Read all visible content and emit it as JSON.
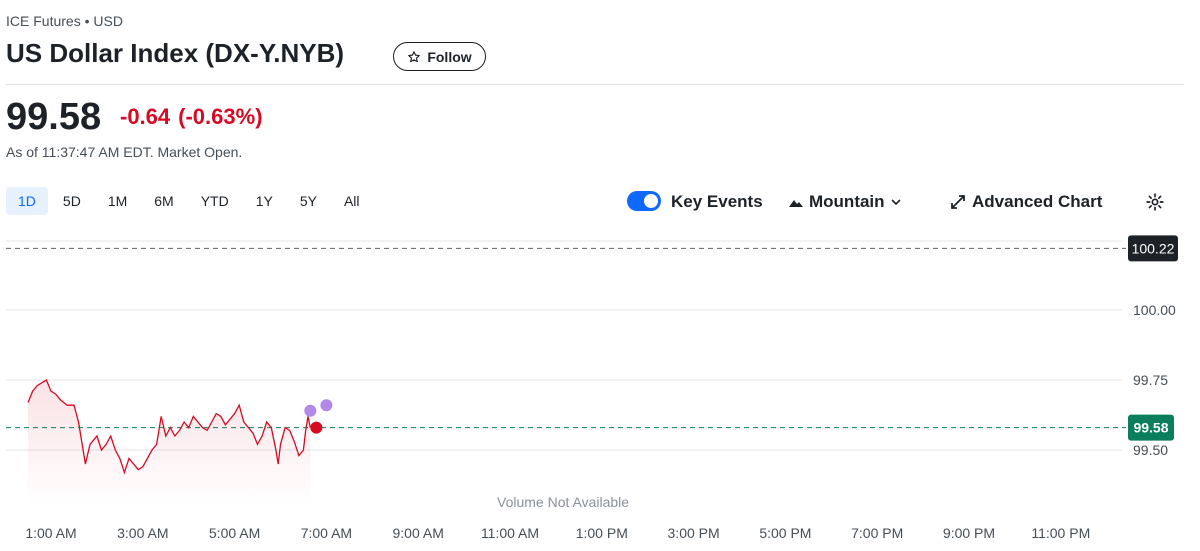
{
  "header": {
    "exchange": "ICE Futures • USD",
    "title": "US Dollar Index (DX-Y.NYB)",
    "follow_label": "Follow"
  },
  "quote": {
    "price": "99.58",
    "change": "-0.64",
    "change_pct": "(-0.63%)",
    "as_of": "As of 11:37:47 AM EDT. Market Open."
  },
  "ranges": [
    {
      "label": "1D",
      "active": true
    },
    {
      "label": "5D"
    },
    {
      "label": "1M"
    },
    {
      "label": "6M"
    },
    {
      "label": "YTD"
    },
    {
      "label": "1Y"
    },
    {
      "label": "5Y"
    },
    {
      "label": "All"
    }
  ],
  "controls": {
    "key_events_label": "Key Events",
    "key_events_on": true,
    "chart_type_label": "Mountain",
    "advanced_chart_label": "Advanced Chart"
  },
  "colors": {
    "down": "#d60a22",
    "accent": "#0f69ff",
    "current_tag": "#0b7e5c",
    "prev_close_tag": "#1d2228",
    "event_marker": "#b388e6"
  },
  "chart_data": {
    "type": "area",
    "ylim": [
      99.4,
      100.24
    ],
    "yticks": [
      "100.00",
      "99.75",
      "99.50"
    ],
    "prev_close": "100.22",
    "current": "99.58",
    "x_labels": [
      "1:00 AM",
      "3:00 AM",
      "5:00 AM",
      "7:00 AM",
      "9:00 AM",
      "11:00 AM",
      "1:00 PM",
      "3:00 PM",
      "5:00 PM",
      "7:00 PM",
      "9:00 PM",
      "11:00 PM"
    ],
    "series": [
      {
        "values": [
          [
            0.5,
            99.67
          ],
          [
            0.6,
            99.71
          ],
          [
            0.7,
            99.73
          ],
          [
            0.8,
            99.74
          ],
          [
            0.9,
            99.75
          ],
          [
            1.0,
            99.71
          ],
          [
            1.1,
            99.7
          ],
          [
            1.2,
            99.68
          ],
          [
            1.35,
            99.66
          ],
          [
            1.5,
            99.66
          ],
          [
            1.6,
            99.6
          ],
          [
            1.65,
            99.55
          ],
          [
            1.7,
            99.5
          ],
          [
            1.75,
            99.45
          ],
          [
            1.85,
            99.52
          ],
          [
            2.0,
            99.55
          ],
          [
            2.1,
            99.5
          ],
          [
            2.2,
            99.52
          ],
          [
            2.3,
            99.55
          ],
          [
            2.4,
            99.5
          ],
          [
            2.5,
            99.47
          ],
          [
            2.6,
            99.42
          ],
          [
            2.7,
            99.47
          ],
          [
            2.8,
            99.45
          ],
          [
            2.9,
            99.43
          ],
          [
            3.0,
            99.44
          ],
          [
            3.1,
            99.47
          ],
          [
            3.2,
            99.5
          ],
          [
            3.3,
            99.52
          ],
          [
            3.4,
            99.62
          ],
          [
            3.5,
            99.55
          ],
          [
            3.6,
            99.58
          ],
          [
            3.7,
            99.55
          ],
          [
            3.8,
            99.57
          ],
          [
            3.9,
            99.6
          ],
          [
            4.0,
            99.58
          ],
          [
            4.1,
            99.62
          ],
          [
            4.2,
            99.6
          ],
          [
            4.3,
            99.58
          ],
          [
            4.4,
            99.57
          ],
          [
            4.5,
            99.6
          ],
          [
            4.6,
            99.63
          ],
          [
            4.7,
            99.62
          ],
          [
            4.8,
            99.59
          ],
          [
            4.9,
            99.61
          ],
          [
            5.0,
            99.63
          ],
          [
            5.1,
            99.66
          ],
          [
            5.2,
            99.6
          ],
          [
            5.3,
            99.58
          ],
          [
            5.4,
            99.56
          ],
          [
            5.5,
            99.52
          ],
          [
            5.6,
            99.55
          ],
          [
            5.7,
            99.6
          ],
          [
            5.8,
            99.58
          ],
          [
            5.9,
            99.5
          ],
          [
            5.95,
            99.45
          ],
          [
            6.0,
            99.52
          ],
          [
            6.1,
            99.58
          ],
          [
            6.2,
            99.57
          ],
          [
            6.3,
            99.53
          ],
          [
            6.4,
            99.48
          ],
          [
            6.5,
            99.5
          ],
          [
            6.55,
            99.57
          ],
          [
            6.6,
            99.62
          ],
          [
            6.65,
            99.58
          ]
        ]
      }
    ],
    "volume_note": "Volume Not Available"
  }
}
